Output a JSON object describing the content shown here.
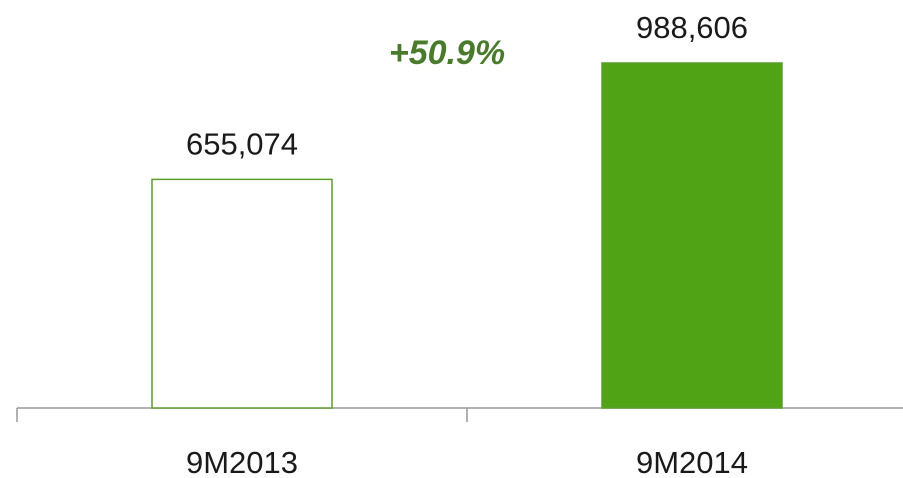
{
  "chart_data": {
    "type": "bar",
    "annotation": "+50.9%",
    "annotation_color": "#4a7a2c",
    "categories": [
      "9M2013",
      "9M2014"
    ],
    "values": [
      655074,
      988606
    ],
    "value_labels": [
      "655,074",
      "988,606"
    ],
    "colors": [
      "#ffffff",
      "#4fa314"
    ],
    "edgecolor": "#5c9e2e",
    "ylim": [
      0,
      1000000
    ]
  }
}
